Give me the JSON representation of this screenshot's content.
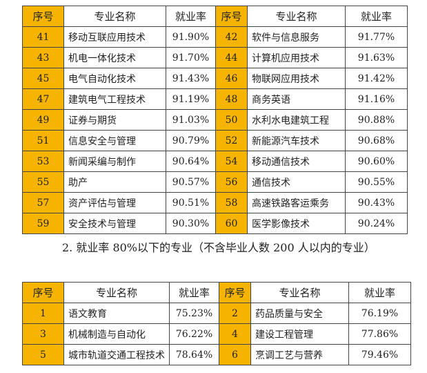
{
  "tables": [
    {
      "header": [
        "序号",
        "专业名称",
        "就业率",
        "序号",
        "专业名称",
        "就业率"
      ],
      "rows": [
        [
          "41",
          "移动互联应用技术",
          "91.90%",
          "42",
          "软件与信息服务",
          "91.77%"
        ],
        [
          "43",
          "机电一体化技术",
          "91.70%",
          "44",
          "计算机应用技术",
          "91.63%"
        ],
        [
          "45",
          "电气自动化技术",
          "91.43%",
          "46",
          "物联网应用技术",
          "91.42%"
        ],
        [
          "47",
          "建筑电气工程技术",
          "91.19%",
          "48",
          "商务英语",
          "91.16%"
        ],
        [
          "49",
          "证券与期货",
          "91.03%",
          "50",
          "水利水电建筑工程",
          "90.88%"
        ],
        [
          "51",
          "信息安全与管理",
          "90.79%",
          "52",
          "新能源汽车技术",
          "90.68%"
        ],
        [
          "53",
          "新闻采编与制作",
          "90.64%",
          "54",
          "移动通信技术",
          "90.60%"
        ],
        [
          "55",
          "助产",
          "90.57%",
          "56",
          "通信技术",
          "90.55%"
        ],
        [
          "57",
          "资产评估与管理",
          "90.51%",
          "58",
          "高速铁路客运乘务",
          "90.43%"
        ],
        [
          "59",
          "安全技术与管理",
          "90.30%",
          "60",
          "医学影像技术",
          "90.24%"
        ]
      ]
    },
    {
      "header": [
        "序号",
        "专业名称",
        "就业率",
        "序号",
        "专业名称",
        "就业率"
      ],
      "rows": [
        [
          "1",
          "语文教育",
          "75.23%",
          "2",
          "药品质量与安全",
          "76.19%"
        ],
        [
          "3",
          "机械制造与自动化",
          "76.22%",
          "4",
          "建设工程管理",
          "77.86%"
        ],
        [
          "5",
          "城市轨道交通工程技术",
          "78.64%",
          "6",
          "烹调工艺与营养",
          "79.46%"
        ]
      ]
    }
  ],
  "heading": "2. 就业率 80%以下的专业（不含毕业人数 200 人以内的专业）"
}
